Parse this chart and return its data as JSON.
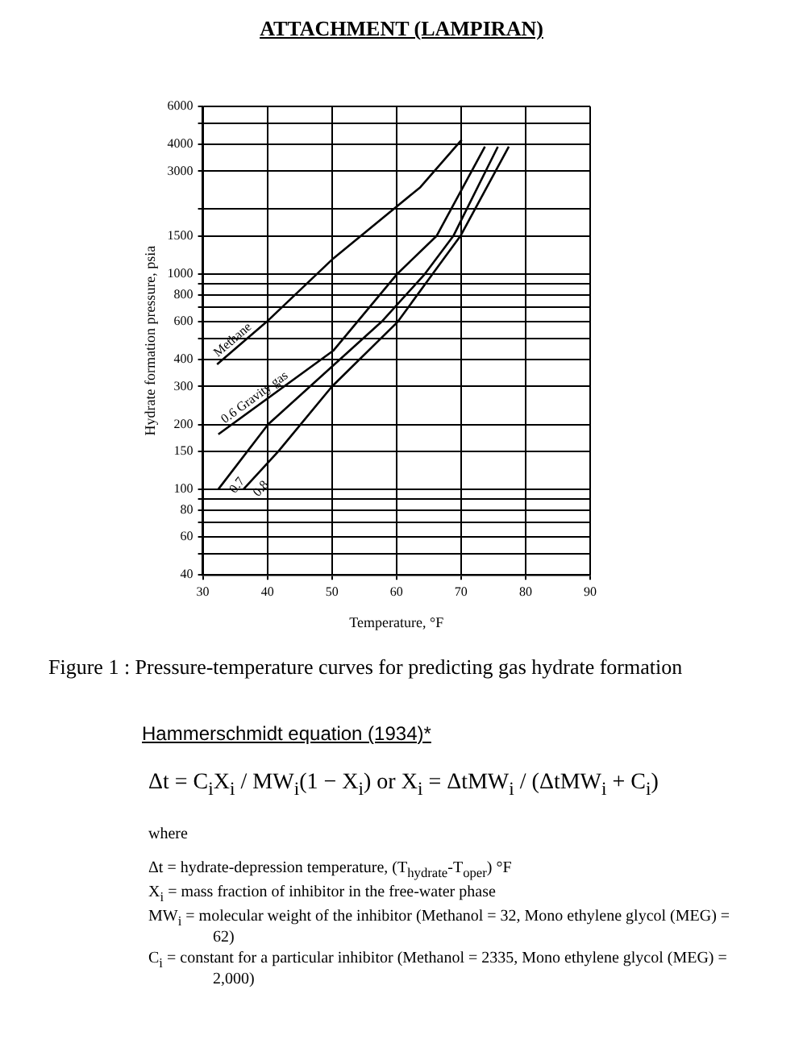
{
  "chart_data": {
    "type": "line",
    "title": "ATTACHMENT (LAMPIRAN)",
    "xlabel": "Temperature, °F",
    "ylabel": "Hydrate formation pressure, psia",
    "log": "y",
    "grid": true,
    "legend": false,
    "marker": "none",
    "line_style": "solid",
    "xlim": [
      30,
      90
    ],
    "xticks": [
      30,
      40,
      50,
      60,
      70,
      80,
      90
    ],
    "ylim": [
      40,
      6000
    ],
    "yticks": [
      40,
      {
        "value": 50,
        "label": null
      },
      60,
      {
        "value": 70,
        "label": null
      },
      80,
      {
        "value": 90,
        "label": null
      },
      100,
      150,
      200,
      300,
      400,
      {
        "value": 500,
        "label": null
      },
      600,
      {
        "value": 700,
        "label": null
      },
      800,
      {
        "value": 900,
        "label": null
      },
      1000,
      1500,
      {
        "value": 2000,
        "label": null
      },
      3000,
      4000,
      {
        "value": 5000,
        "label": null
      },
      6000
    ],
    "series": [
      {
        "name": "Methane",
        "color": "#000000",
        "x": [
          32.2,
          39.9,
          50.2,
          63.7,
          70.1
        ],
        "values": [
          380,
          600,
          1180,
          2530,
          4200
        ]
      },
      {
        "name": "0.6 Gravity gas",
        "color": "#000000",
        "x": [
          32.4,
          50.2,
          60.1,
          66.2,
          73.7
        ],
        "values": [
          180,
          440,
          1000,
          1500,
          3900
        ]
      },
      {
        "name": "0.7",
        "color": "#000000",
        "x": [
          32.4,
          40.1,
          57.7,
          64.4,
          68.8,
          75.7
        ],
        "values": [
          100,
          200,
          600,
          1000,
          1500,
          3900
        ]
      },
      {
        "name": "0.8",
        "color": "#000000",
        "x": [
          36.3,
          41.7,
          50,
          60.2,
          65.6,
          69.9,
          77.4
        ],
        "values": [
          100,
          150,
          300,
          600,
          1000,
          1500,
          3900
        ]
      }
    ],
    "annotations": [
      "Figure 1 : Pressure-temperature curves for predicting gas hydrate formation",
      "Hammerschmidt equation (1934)*",
      "Δt = C$_{i}$X$_{i}$ / MW$_{i}$(1 − X$_{i}$)   or   X$_{i}$ = ΔtMW$_{i}$ / (ΔtMW$_{i}$ + C$_{i}$)",
      "where",
      "Δt = hydrate-depression temperature, (T$_{hydrate}$-T$_{oper}$) °F",
      "X$_{i}$ = mass fraction of inhibitor in the free-water phase",
      "MW$_{i}$ = molecular weight of the inhibitor (Methanol = 32, Mono ethylene glycol (MEG) = 62)",
      "C$_{i}$ = constant for a particular inhibitor (Methanol = 2335, Mono ethylene glycol (MEG) = 2,000)"
    ]
  }
}
